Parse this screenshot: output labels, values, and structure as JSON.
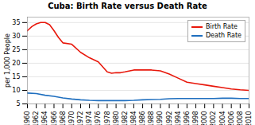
{
  "chart_data": {
    "type": "line",
    "title": "Cuba: Birth Rate versus Death Rate",
    "y_label": "per 1,000 People",
    "xlim": [
      1960,
      2010
    ],
    "xticks": [
      1960,
      1962,
      1964,
      1966,
      1968,
      1970,
      1972,
      1974,
      1976,
      1978,
      1980,
      1982,
      1984,
      1986,
      1988,
      1990,
      1992,
      1994,
      1996,
      1998,
      2000,
      2002,
      2004,
      2006,
      2008,
      2010
    ],
    "ylim": [
      5,
      37
    ],
    "yticks": [
      5,
      10,
      15,
      20,
      25,
      30,
      35
    ],
    "grid": true,
    "legend": "upper right",
    "series": [
      {
        "name": "Birth Rate",
        "color": "#e8180c",
        "x": [
          1960,
          1961,
          1962,
          1963,
          1964,
          1965,
          1966,
          1967,
          1968,
          1970,
          1972,
          1974,
          1976,
          1978,
          1979,
          1980,
          1981,
          1982,
          1984,
          1986,
          1988,
          1990,
          1992,
          1994,
          1996,
          1998,
          2000,
          2002,
          2004,
          2006,
          2008,
          2010
        ],
        "values": [
          32.0,
          33.5,
          34.5,
          35.0,
          35.0,
          34.2,
          32.0,
          29.5,
          27.5,
          27.0,
          24.0,
          22.0,
          20.5,
          16.8,
          16.3,
          16.5,
          16.5,
          16.8,
          17.5,
          17.5,
          17.5,
          17.2,
          16.0,
          14.5,
          13.0,
          12.5,
          12.0,
          11.5,
          11.0,
          10.5,
          10.2,
          10.0
        ]
      },
      {
        "name": "Death Rate",
        "color": "#1f6fbf",
        "x": [
          1960,
          1962,
          1964,
          1966,
          1968,
          1970,
          1972,
          1974,
          1976,
          1978,
          1980,
          1982,
          1984,
          1986,
          1988,
          1990,
          1992,
          1994,
          1996,
          1998,
          2000,
          2002,
          2004,
          2006,
          2008,
          2010
        ],
        "values": [
          9.0,
          8.8,
          8.2,
          7.8,
          7.2,
          6.8,
          6.5,
          6.3,
          6.2,
          6.2,
          6.2,
          6.2,
          6.3,
          6.5,
          6.6,
          6.7,
          6.9,
          7.0,
          7.0,
          7.0,
          7.0,
          7.0,
          7.1,
          7.1,
          7.0,
          7.0
        ]
      }
    ]
  }
}
